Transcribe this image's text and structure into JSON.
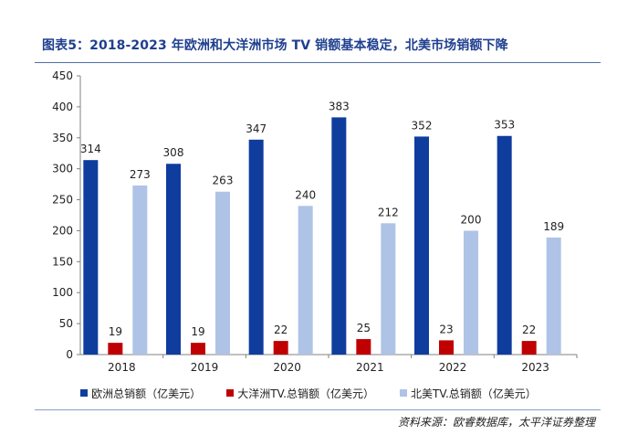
{
  "title": "图表5：2018-2023 年欧洲和大洋洲市场 TV 销额基本稳定，北美市场销额下降",
  "source": "资料来源：欧睿数据库，太平洋证券整理",
  "chart_data": {
    "type": "bar",
    "categories": [
      "2018",
      "2019",
      "2020",
      "2021",
      "2022",
      "2023"
    ],
    "yticks": [
      "0",
      "50",
      "100",
      "150",
      "200",
      "250",
      "300",
      "350",
      "400",
      "450"
    ],
    "ylim": [
      0,
      450
    ],
    "grid": false,
    "legend_position": "bottom",
    "series": [
      {
        "name": "欧洲总销额（亿美元）",
        "color": "#0f3d9e",
        "values": [
          314,
          308,
          347,
          383,
          352,
          353
        ]
      },
      {
        "name": "大洋洲TV.总销额（亿美元）",
        "color": "#c00000",
        "values": [
          19,
          19,
          22,
          25,
          23,
          22
        ]
      },
      {
        "name": "北美TV.总销额（亿美元）",
        "color": "#aec3e6",
        "values": [
          273,
          263,
          240,
          212,
          200,
          189
        ]
      }
    ]
  }
}
